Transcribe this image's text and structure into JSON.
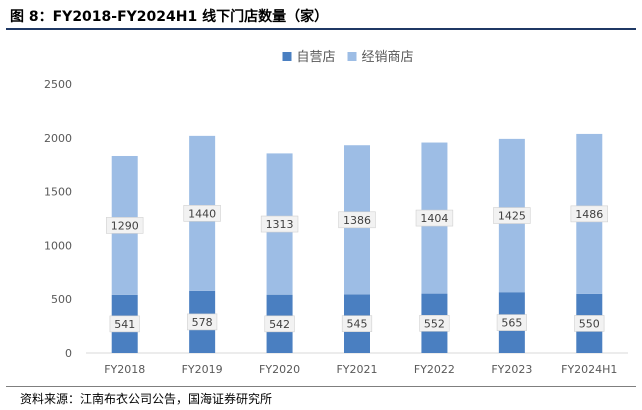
{
  "header": {
    "title": "图 8：FY2018-FY2024H1 线下门店数量（家）"
  },
  "footer": {
    "source": "资料来源：江南布衣公司公告，国海证券研究所"
  },
  "colors": {
    "self_operated": "#4a7fc1",
    "distributor": "#9dbde5",
    "label_bg": "#f2f2f2",
    "axis_text": "#595959",
    "grid": "#d9d9d9"
  },
  "chart_data": {
    "type": "bar",
    "stacked": true,
    "categories": [
      "FY2018",
      "FY2019",
      "FY2020",
      "FY2021",
      "FY2022",
      "FY2023",
      "FY2024H1"
    ],
    "series": [
      {
        "name": "自营店",
        "values": [
          541,
          578,
          542,
          545,
          552,
          565,
          550
        ]
      },
      {
        "name": "经销商店",
        "values": [
          1290,
          1440,
          1313,
          1386,
          1404,
          1425,
          1486
        ]
      }
    ],
    "ylim": [
      0,
      2500
    ],
    "yticks": [
      0,
      500,
      1000,
      1500,
      2000,
      2500
    ],
    "legend_position": "top-center",
    "grid": false
  }
}
